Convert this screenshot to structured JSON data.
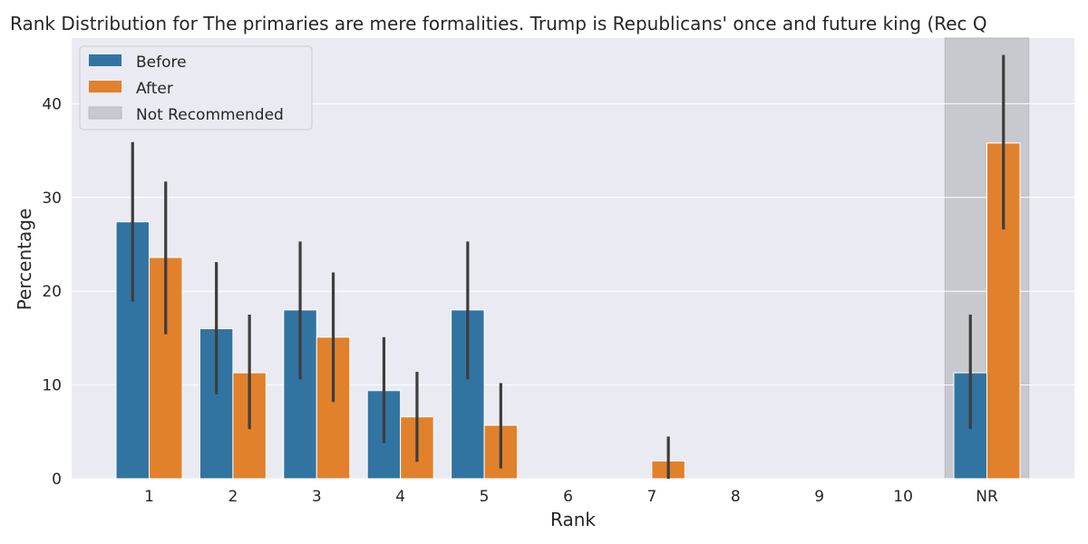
{
  "chart_data": {
    "type": "bar",
    "title": "Rank Distribution for The primaries are mere formalities. Trump is Republicans' once and future king (Rec Q",
    "xlabel": "Rank",
    "ylabel": "Percentage",
    "categories": [
      "1",
      "2",
      "3",
      "4",
      "5",
      "6",
      "7",
      "8",
      "9",
      "10",
      "NR"
    ],
    "ylim": [
      0,
      47
    ],
    "yticks": [
      0,
      10,
      20,
      30,
      40
    ],
    "grid": true,
    "legend_position": "top-left",
    "highlight": {
      "category": "NR",
      "label": "Not Recommended",
      "color": "#c8c8cf"
    },
    "series": [
      {
        "name": "Before",
        "color": "#3274a1",
        "values": [
          27.4,
          16.0,
          18.0,
          9.4,
          18.0,
          0,
          0,
          0,
          0,
          0,
          11.3
        ],
        "error_low": [
          18.9,
          9.0,
          10.6,
          3.8,
          10.6,
          null,
          null,
          null,
          null,
          null,
          5.3
        ],
        "error_high": [
          35.9,
          23.1,
          25.3,
          15.1,
          25.3,
          null,
          null,
          null,
          null,
          null,
          17.5
        ]
      },
      {
        "name": "After",
        "color": "#e1812c",
        "values": [
          23.6,
          11.3,
          15.1,
          6.6,
          5.7,
          0,
          1.9,
          0,
          0,
          0,
          35.8
        ],
        "error_low": [
          15.4,
          5.3,
          8.2,
          1.8,
          1.1,
          null,
          0,
          null,
          null,
          null,
          26.6
        ],
        "error_high": [
          31.7,
          17.5,
          22.0,
          11.4,
          10.2,
          null,
          4.5,
          null,
          null,
          null,
          45.2
        ]
      }
    ]
  }
}
